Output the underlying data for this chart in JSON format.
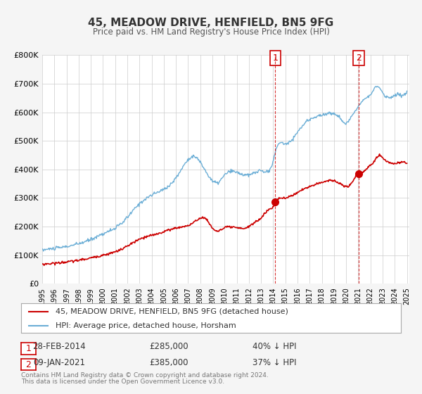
{
  "title": "45, MEADOW DRIVE, HENFIELD, BN5 9FG",
  "subtitle": "Price paid vs. HM Land Registry's House Price Index (HPI)",
  "xlabel": "",
  "ylabel": "",
  "ylim": [
    0,
    800000
  ],
  "xlim_start": 1995.0,
  "xlim_end": 2025.2,
  "yticks": [
    0,
    100000,
    200000,
    300000,
    400000,
    500000,
    600000,
    700000,
    800000
  ],
  "ytick_labels": [
    "£0",
    "£100K",
    "£200K",
    "£300K",
    "£400K",
    "£500K",
    "£600K",
    "£700K",
    "£800K"
  ],
  "xticks": [
    1995,
    1996,
    1997,
    1998,
    1999,
    2000,
    2001,
    2002,
    2003,
    2004,
    2005,
    2006,
    2007,
    2008,
    2009,
    2010,
    2011,
    2012,
    2013,
    2014,
    2015,
    2016,
    2017,
    2018,
    2019,
    2020,
    2021,
    2022,
    2023,
    2024,
    2025
  ],
  "hpi_color": "#6baed6",
  "price_paid_color": "#cc0000",
  "marker_color": "#cc0000",
  "vline_color": "#cc0000",
  "point1_x": 2014.167,
  "point1_y": 285000,
  "point1_label": "1",
  "point1_date": "28-FEB-2014",
  "point1_price": "£285,000",
  "point1_hpi": "40% ↓ HPI",
  "point2_x": 2021.03,
  "point2_y": 385000,
  "point2_label": "2",
  "point2_date": "09-JAN-2021",
  "point2_price": "£385,000",
  "point2_hpi": "37% ↓ HPI",
  "legend_label1": "45, MEADOW DRIVE, HENFIELD, BN5 9FG (detached house)",
  "legend_label2": "HPI: Average price, detached house, Horsham",
  "footer_line1": "Contains HM Land Registry data © Crown copyright and database right 2024.",
  "footer_line2": "This data is licensed under the Open Government Licence v3.0.",
  "bg_color": "#f5f5f5",
  "plot_bg_color": "#ffffff",
  "grid_color": "#cccccc"
}
